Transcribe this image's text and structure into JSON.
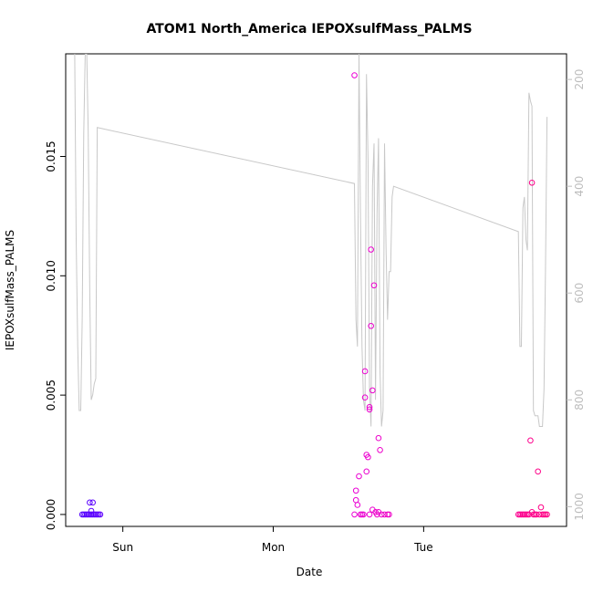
{
  "chart_data": {
    "type": "scatter",
    "title": "ATOM1 North_America IEPOXsulfMass_PALMS",
    "xlabel": "Date",
    "ylabel": "IEPOXsulfMass_PALMS",
    "x_tick_labels": [
      "Sun",
      "Mon",
      "Tue"
    ],
    "x_tick_positions_days": [
      1,
      2,
      3
    ],
    "xlim_days": [
      0.62,
      3.95
    ],
    "ylim": [
      -0.0005,
      0.0193
    ],
    "y_ticks": [
      0.0,
      0.005,
      0.01,
      0.015
    ],
    "y_tick_labels": [
      "0.000",
      "0.005",
      "0.010",
      "0.015"
    ],
    "right_axis": {
      "label": "",
      "reversed": true,
      "lim": [
        1037,
        152
      ],
      "ticks": [
        200,
        400,
        600,
        800,
        1000
      ],
      "tick_labels": [
        "200",
        "400",
        "600",
        "800",
        "1000"
      ],
      "color": "#bdbdbd"
    },
    "grid": false,
    "series": [
      {
        "kind": "points",
        "points": [
          [
            0.73,
            0.0
          ],
          [
            0.74,
            0.0
          ],
          [
            0.75,
            0.0
          ],
          [
            0.76,
            0.0
          ],
          [
            0.77,
            0.0
          ],
          [
            0.78,
            0.0
          ],
          [
            0.79,
            0.0
          ],
          [
            0.8,
            0.0
          ],
          [
            0.81,
            0.0
          ],
          [
            0.82,
            0.0
          ],
          [
            0.83,
            0.0
          ],
          [
            0.84,
            0.0
          ],
          [
            0.85,
            0.0
          ],
          [
            0.78,
            0.0005
          ],
          [
            0.8,
            0.0005
          ],
          [
            0.79,
            0.00015
          ],
          [
            2.54,
            0.0184
          ],
          [
            2.54,
            0.0
          ],
          [
            2.55,
            0.0006
          ],
          [
            2.55,
            0.001
          ],
          [
            2.56,
            0.0004
          ],
          [
            2.57,
            0.0016
          ],
          [
            2.58,
            0.0
          ],
          [
            2.59,
            0.0
          ],
          [
            2.6,
            0.0
          ],
          [
            2.61,
            0.0049
          ],
          [
            2.61,
            0.006
          ],
          [
            2.62,
            0.0025
          ],
          [
            2.62,
            0.0018
          ],
          [
            2.63,
            0.0024
          ],
          [
            2.64,
            0.0045
          ],
          [
            2.64,
            0.0044
          ],
          [
            2.64,
            0.0
          ],
          [
            2.65,
            0.0079
          ],
          [
            2.65,
            0.0111
          ],
          [
            2.66,
            0.0002
          ],
          [
            2.66,
            0.0052
          ],
          [
            2.67,
            0.0096
          ],
          [
            2.68,
            0.0001
          ],
          [
            2.69,
            0.0
          ],
          [
            2.7,
            0.0032
          ],
          [
            2.71,
            0.0027
          ],
          [
            2.72,
            0.0
          ],
          [
            2.74,
            0.0
          ],
          [
            2.76,
            0.0
          ],
          [
            2.77,
            0.0
          ],
          [
            2.7,
            0.0001
          ],
          [
            3.63,
            0.0
          ],
          [
            3.64,
            0.0
          ],
          [
            3.65,
            0.0
          ],
          [
            3.66,
            0.0
          ],
          [
            3.67,
            0.0
          ],
          [
            3.68,
            0.0
          ],
          [
            3.69,
            0.0
          ],
          [
            3.7,
            0.0
          ],
          [
            3.71,
            0.0031
          ],
          [
            3.72,
            0.0001
          ],
          [
            3.72,
            0.0139
          ],
          [
            3.73,
            0.0
          ],
          [
            3.74,
            0.0
          ],
          [
            3.75,
            0.0
          ],
          [
            3.76,
            0.0018
          ],
          [
            3.77,
            0.0
          ],
          [
            3.78,
            0.0003
          ],
          [
            3.79,
            0.0
          ],
          [
            3.8,
            0.0
          ],
          [
            3.81,
            0.0
          ],
          [
            3.82,
            0.0
          ]
        ]
      },
      {
        "kind": "line",
        "axis": "right",
        "color": "#c8c8c8",
        "points": [
          [
            0.68,
            152
          ],
          [
            0.69,
            500
          ],
          [
            0.7,
            700
          ],
          [
            0.71,
            820
          ],
          [
            0.72,
            820
          ],
          [
            0.73,
            650
          ],
          [
            0.74,
            300
          ],
          [
            0.75,
            152
          ],
          [
            0.76,
            152
          ],
          [
            0.77,
            300
          ],
          [
            0.78,
            600
          ],
          [
            0.79,
            800
          ],
          [
            0.8,
            790
          ],
          [
            0.81,
            770
          ],
          [
            0.82,
            760
          ],
          [
            0.83,
            290
          ],
          [
            2.54,
            395
          ],
          [
            2.55,
            650
          ],
          [
            2.56,
            700
          ],
          [
            2.57,
            152
          ],
          [
            2.58,
            450
          ],
          [
            2.59,
            700
          ],
          [
            2.6,
            800
          ],
          [
            2.61,
            820
          ],
          [
            2.62,
            190
          ],
          [
            2.63,
            350
          ],
          [
            2.64,
            780
          ],
          [
            2.65,
            850
          ],
          [
            2.66,
            400
          ],
          [
            2.67,
            320
          ],
          [
            2.68,
            800
          ],
          [
            2.69,
            450
          ],
          [
            2.7,
            310
          ],
          [
            2.71,
            750
          ],
          [
            2.72,
            850
          ],
          [
            2.73,
            820
          ],
          [
            2.74,
            320
          ],
          [
            2.75,
            520
          ],
          [
            2.76,
            650
          ],
          [
            2.77,
            560
          ],
          [
            2.78,
            560
          ],
          [
            2.79,
            420
          ],
          [
            2.8,
            400
          ],
          [
            3.63,
            485
          ],
          [
            3.64,
            700
          ],
          [
            3.65,
            700
          ],
          [
            3.66,
            440
          ],
          [
            3.67,
            420
          ],
          [
            3.68,
            500
          ],
          [
            3.69,
            520
          ],
          [
            3.7,
            225
          ],
          [
            3.71,
            240
          ],
          [
            3.72,
            250
          ],
          [
            3.73,
            820
          ],
          [
            3.74,
            830
          ],
          [
            3.75,
            830
          ],
          [
            3.76,
            830
          ],
          [
            3.77,
            850
          ],
          [
            3.78,
            850
          ],
          [
            3.79,
            850
          ],
          [
            3.8,
            780
          ],
          [
            3.81,
            560
          ],
          [
            3.82,
            270
          ]
        ]
      }
    ]
  }
}
